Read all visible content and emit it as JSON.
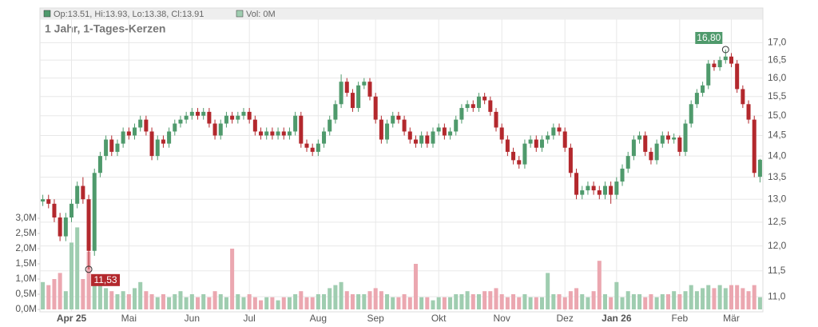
{
  "header": {
    "ohlc": "Op:13.51, Hi:13.93, Lo:13.38, Cl:13.91",
    "volume": "Vol: 0M"
  },
  "chart_data": {
    "type": "candlestick",
    "title": "1 Jahr, 1-Tages-Kerzen",
    "categories": [
      null,
      null,
      null,
      null,
      null,
      "Apr 25",
      null,
      null,
      null,
      null,
      null,
      null,
      null,
      null,
      null,
      "Mai",
      null,
      null,
      null,
      null,
      null,
      null,
      null,
      null,
      null,
      null,
      "Jun",
      null,
      null,
      null,
      null,
      null,
      null,
      null,
      null,
      null,
      "Jul",
      null,
      null,
      null,
      null,
      null,
      null,
      null,
      null,
      null,
      null,
      null,
      "Aug",
      null,
      null,
      null,
      null,
      null,
      null,
      null,
      null,
      null,
      "Sep",
      null,
      null,
      null,
      null,
      null,
      null,
      null,
      null,
      null,
      null,
      "Okt",
      null,
      null,
      null,
      null,
      null,
      null,
      null,
      null,
      null,
      null,
      "Nov",
      null,
      null,
      null,
      null,
      null,
      null,
      null,
      null,
      null,
      null,
      "Dez",
      null,
      null,
      null,
      null,
      null,
      null,
      null,
      null,
      "Jan 26",
      null,
      null,
      null,
      null,
      null,
      null,
      null,
      null,
      null,
      null,
      "Feb",
      null,
      null,
      null,
      null,
      null,
      null,
      null,
      null,
      "Mär",
      null,
      null,
      null,
      null,
      null
    ],
    "open": [
      12.95,
      13.0,
      12.9,
      12.6,
      12.2,
      12.6,
      12.9,
      13.3,
      13.0,
      11.9,
      13.6,
      14.0,
      14.4,
      14.1,
      14.3,
      14.6,
      14.5,
      14.7,
      14.9,
      14.6,
      14.0,
      14.4,
      14.3,
      14.6,
      14.8,
      14.9,
      15.0,
      15.1,
      15.0,
      15.1,
      14.8,
      14.5,
      14.8,
      15.0,
      14.9,
      15.0,
      15.1,
      14.9,
      14.6,
      14.5,
      14.6,
      14.5,
      14.6,
      14.5,
      14.6,
      15.0,
      14.3,
      14.2,
      14.1,
      14.3,
      14.6,
      14.9,
      15.3,
      15.9,
      15.6,
      15.2,
      15.8,
      15.9,
      15.5,
      14.9,
      14.4,
      14.8,
      15.0,
      14.9,
      14.6,
      14.4,
      14.3,
      14.5,
      14.3,
      14.6,
      14.7,
      14.5,
      14.6,
      14.9,
      15.2,
      15.3,
      15.2,
      15.5,
      15.4,
      15.1,
      14.7,
      14.4,
      14.1,
      13.9,
      13.8,
      14.3,
      14.4,
      14.2,
      14.4,
      14.5,
      14.7,
      14.6,
      14.2,
      13.6,
      13.1,
      13.2,
      13.3,
      13.2,
      13.1,
      13.3,
      13.1,
      13.4,
      13.7,
      14.0,
      14.4,
      14.5,
      14.1,
      13.9,
      14.3,
      14.5,
      14.4,
      14.45,
      14.1,
      14.8,
      15.3,
      15.6,
      15.8,
      16.4,
      16.3,
      16.5,
      16.6,
      16.4,
      15.7,
      15.3,
      14.9,
      13.51
    ],
    "high": [
      13.1,
      13.1,
      13.0,
      12.7,
      12.7,
      13.0,
      13.4,
      13.5,
      13.1,
      13.7,
      14.1,
      14.5,
      14.5,
      14.4,
      14.7,
      14.7,
      14.8,
      15.0,
      15.0,
      14.7,
      14.5,
      14.5,
      14.7,
      14.9,
      15.0,
      15.1,
      15.2,
      15.2,
      15.2,
      15.2,
      14.9,
      14.9,
      15.1,
      15.1,
      15.1,
      15.2,
      15.2,
      15.0,
      14.7,
      14.7,
      14.7,
      14.7,
      14.7,
      14.7,
      15.1,
      15.1,
      14.4,
      14.3,
      14.4,
      14.7,
      15.0,
      15.4,
      16.1,
      16.0,
      15.7,
      15.9,
      16.0,
      16.0,
      15.6,
      15.0,
      14.9,
      15.1,
      15.1,
      15.0,
      14.7,
      14.5,
      14.6,
      14.6,
      14.7,
      14.8,
      14.8,
      14.7,
      15.0,
      15.3,
      15.4,
      15.4,
      15.6,
      15.6,
      15.5,
      15.2,
      14.8,
      14.5,
      14.2,
      14.0,
      14.4,
      14.5,
      14.5,
      14.5,
      14.6,
      14.8,
      14.8,
      14.7,
      14.3,
      13.7,
      13.3,
      13.4,
      13.4,
      13.3,
      13.4,
      13.4,
      13.5,
      13.8,
      14.1,
      14.5,
      14.6,
      14.6,
      14.2,
      14.4,
      14.6,
      14.6,
      14.55,
      14.5,
      14.9,
      15.4,
      15.7,
      15.9,
      16.5,
      16.5,
      16.6,
      16.8,
      16.7,
      16.5,
      15.8,
      15.4,
      15.0,
      13.93
    ],
    "low": [
      12.85,
      12.8,
      12.5,
      12.1,
      12.1,
      12.5,
      12.8,
      12.9,
      11.53,
      11.8,
      13.5,
      13.9,
      14.0,
      14.0,
      14.2,
      14.4,
      14.4,
      14.6,
      14.5,
      13.9,
      13.9,
      14.2,
      14.2,
      14.5,
      14.7,
      14.8,
      14.9,
      14.9,
      14.9,
      14.7,
      14.4,
      14.4,
      14.7,
      14.8,
      14.8,
      14.9,
      14.8,
      14.5,
      14.4,
      14.4,
      14.4,
      14.4,
      14.4,
      14.4,
      14.5,
      14.2,
      14.1,
      14.0,
      14.0,
      14.2,
      14.5,
      14.8,
      15.2,
      15.5,
      15.1,
      15.1,
      15.7,
      15.4,
      14.8,
      14.3,
      14.3,
      14.7,
      14.8,
      14.5,
      14.3,
      14.2,
      14.2,
      14.2,
      14.2,
      14.5,
      14.4,
      14.4,
      14.5,
      14.8,
      15.1,
      15.1,
      15.1,
      15.3,
      15.0,
      14.6,
      14.3,
      14.0,
      13.8,
      13.7,
      13.7,
      14.2,
      14.1,
      14.1,
      14.3,
      14.4,
      14.5,
      14.1,
      13.5,
      13.0,
      13.0,
      13.1,
      13.1,
      13.0,
      13.0,
      12.9,
      13.0,
      13.3,
      13.6,
      13.9,
      14.3,
      14.0,
      13.8,
      13.8,
      14.2,
      14.3,
      14.3,
      14.0,
      14.0,
      14.7,
      15.2,
      15.5,
      15.7,
      16.2,
      16.2,
      16.4,
      16.3,
      15.6,
      15.2,
      14.8,
      13.5,
      13.38
    ],
    "close": [
      13.0,
      12.9,
      12.6,
      12.2,
      12.6,
      12.9,
      13.3,
      13.0,
      11.9,
      13.6,
      14.0,
      14.4,
      14.1,
      14.3,
      14.6,
      14.5,
      14.7,
      14.9,
      14.6,
      14.0,
      14.4,
      14.3,
      14.6,
      14.8,
      14.9,
      15.0,
      15.1,
      15.0,
      15.1,
      14.8,
      14.5,
      14.8,
      15.0,
      14.9,
      15.0,
      15.1,
      14.9,
      14.6,
      14.5,
      14.6,
      14.5,
      14.6,
      14.5,
      14.6,
      15.0,
      14.3,
      14.2,
      14.1,
      14.3,
      14.6,
      14.9,
      15.3,
      15.9,
      15.6,
      15.2,
      15.8,
      15.9,
      15.5,
      14.9,
      14.4,
      14.8,
      15.0,
      14.9,
      14.6,
      14.4,
      14.3,
      14.5,
      14.3,
      14.6,
      14.7,
      14.5,
      14.6,
      14.9,
      15.2,
      15.3,
      15.2,
      15.5,
      15.4,
      15.1,
      14.7,
      14.4,
      14.1,
      13.9,
      13.8,
      14.3,
      14.4,
      14.2,
      14.4,
      14.5,
      14.7,
      14.6,
      14.2,
      13.6,
      13.1,
      13.2,
      13.3,
      13.2,
      13.1,
      13.3,
      13.1,
      13.4,
      13.7,
      14.0,
      14.4,
      14.5,
      14.1,
      13.9,
      14.3,
      14.5,
      14.4,
      14.45,
      14.1,
      14.8,
      15.3,
      15.6,
      15.8,
      16.4,
      16.3,
      16.5,
      16.6,
      16.4,
      15.7,
      15.3,
      14.9,
      13.6,
      13.91
    ],
    "volume": [
      0.9,
      0.8,
      1.0,
      1.2,
      0.6,
      2.2,
      2.7,
      1.0,
      1.9,
      0.9,
      0.8,
      0.7,
      0.6,
      0.5,
      0.6,
      0.5,
      0.7,
      0.9,
      0.6,
      0.5,
      0.4,
      0.5,
      0.4,
      0.5,
      0.6,
      0.4,
      0.5,
      0.4,
      0.5,
      0.4,
      0.6,
      0.5,
      0.4,
      2.0,
      0.5,
      0.4,
      0.5,
      0.4,
      0.3,
      0.4,
      0.4,
      0.3,
      0.4,
      0.4,
      0.5,
      0.6,
      0.4,
      0.4,
      0.5,
      0.5,
      0.7,
      0.8,
      0.9,
      0.6,
      0.5,
      0.5,
      0.5,
      0.6,
      0.7,
      0.6,
      0.5,
      0.4,
      0.4,
      0.5,
      0.4,
      1.5,
      0.4,
      0.4,
      0.3,
      0.4,
      0.4,
      0.4,
      0.5,
      0.5,
      0.6,
      0.5,
      0.5,
      0.6,
      0.6,
      0.7,
      0.5,
      0.4,
      0.5,
      0.4,
      0.5,
      0.4,
      0.4,
      0.4,
      1.2,
      0.5,
      0.5,
      0.4,
      0.6,
      0.7,
      0.5,
      0.4,
      0.6,
      1.6,
      0.5,
      0.4,
      0.9,
      0.4,
      0.6,
      0.5,
      0.5,
      0.4,
      0.5,
      0.4,
      0.5,
      0.5,
      0.6,
      0.5,
      0.6,
      0.8,
      0.6,
      0.7,
      0.8,
      0.7,
      0.8,
      0.7,
      0.8,
      0.8,
      0.7,
      0.6,
      0.8,
      0.4
    ],
    "log_scale": true,
    "grid": true,
    "ylim": [
      10.72,
      18.04
    ],
    "yticks": [
      {
        "value": 11,
        "label": "11,0"
      },
      {
        "value": 11.5,
        "label": "11,5"
      },
      {
        "value": 12,
        "label": "12,0"
      },
      {
        "value": 12.5,
        "label": "12,5"
      },
      {
        "value": 13,
        "label": "13,0"
      },
      {
        "value": 13.5,
        "label": "13,5"
      },
      {
        "value": 14,
        "label": "14,0"
      },
      {
        "value": 14.5,
        "label": "14,5"
      },
      {
        "value": 15,
        "label": "15,0"
      },
      {
        "value": 15.5,
        "label": "15,5"
      },
      {
        "value": 16,
        "label": "16,0"
      },
      {
        "value": 16.5,
        "label": "16,5"
      },
      {
        "value": 17,
        "label": "17,0"
      }
    ],
    "volume_lim": [
      0,
      3
    ],
    "volume_ticks": [
      {
        "value": 0,
        "label": "0,0M"
      },
      {
        "value": 0.5,
        "label": "0,5M"
      },
      {
        "value": 1,
        "label": "1,0M"
      },
      {
        "value": 1.5,
        "label": "1,5M"
      },
      {
        "value": 2,
        "label": "2,0M"
      },
      {
        "value": 2.5,
        "label": "2,5M"
      },
      {
        "value": 3,
        "label": "3,0M"
      }
    ],
    "high_label": "16,80",
    "low_label": "11,53",
    "up_color": "#4f9a6c",
    "down_color": "#b3282d",
    "volume_up_color": "#9fcdb0",
    "volume_down_color": "#eba7b0"
  }
}
